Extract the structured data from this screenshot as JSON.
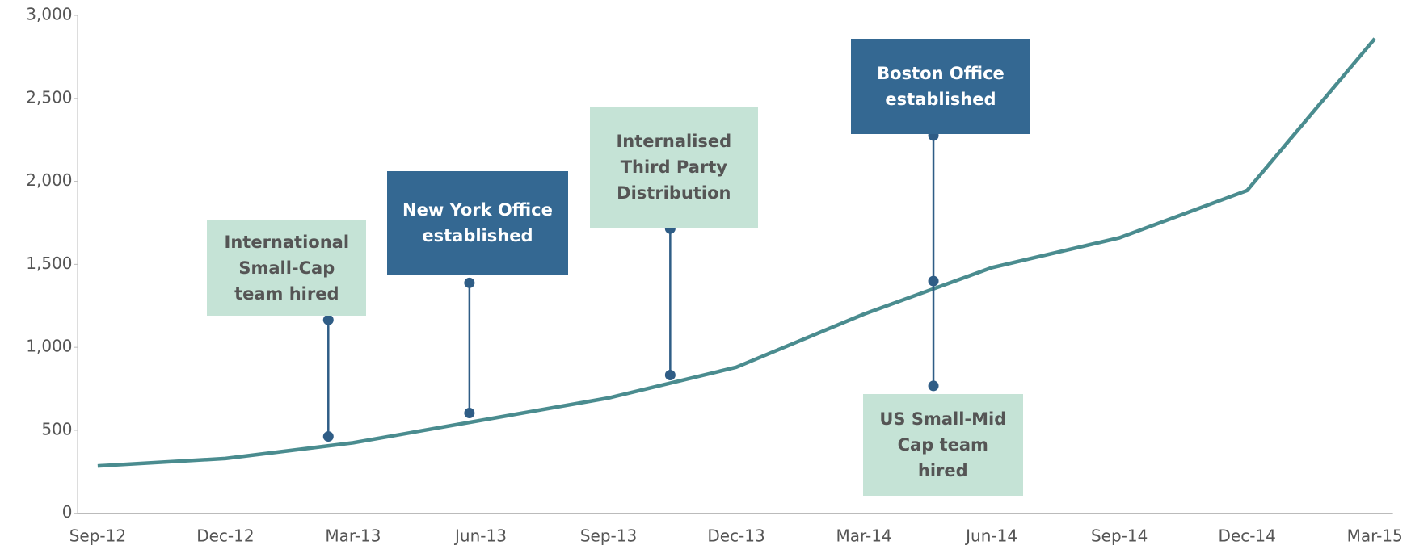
{
  "chart_data": {
    "type": "line",
    "categories": [
      "Sep-12",
      "Dec-12",
      "Mar-13",
      "Jun-13",
      "Sep-13",
      "Dec-13",
      "Mar-14",
      "Jun-14",
      "Sep-14",
      "Dec-14",
      "Mar-15"
    ],
    "series": [
      {
        "color": "#4a8c8f",
        "values": [
          285,
          330,
          425,
          560,
          695,
          880,
          1200,
          1480,
          1660,
          1945,
          2860
        ]
      }
    ],
    "ylim": [
      0,
      3000
    ],
    "yticks": [
      0,
      500,
      {
        "value": 1000,
        "label": "1,000"
      },
      {
        "value": 1500,
        "label": "1,500"
      },
      {
        "value": 2000,
        "label": "2,000"
      },
      {
        "value": 2500,
        "label": "2,500"
      },
      {
        "value": 3000,
        "label": "3,000"
      }
    ],
    "annotations": [
      "International Small-Cap team hired",
      "New York Office established",
      "Internalised Third Party Distribution",
      "Boston Office established",
      "US Small-Mid Cap team hired"
    ]
  }
}
